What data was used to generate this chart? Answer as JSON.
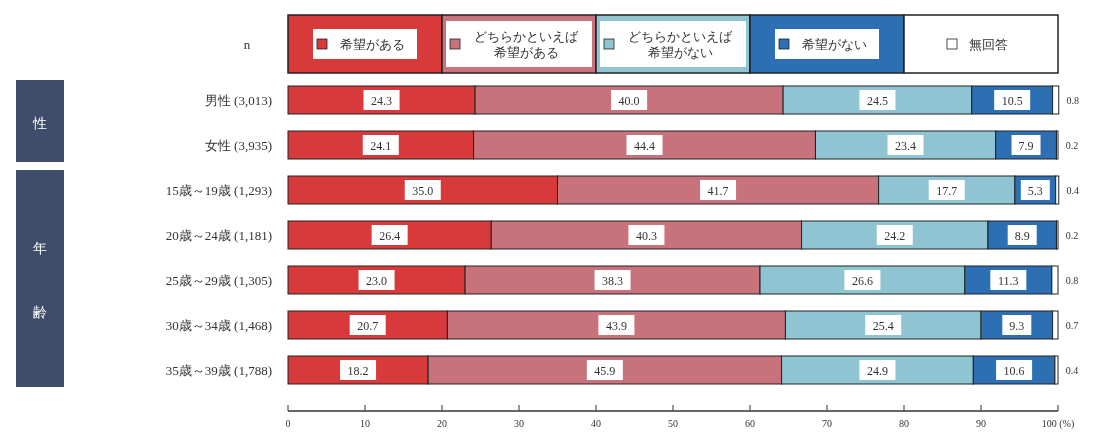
{
  "chart_data": {
    "type": "bar",
    "orientation": "horizontal",
    "stacked": true,
    "categories": [
      "男性 (3,013)",
      "女性 (3,935)",
      "15歳～19歳 (1,293)",
      "20歳～24歳 (1,181)",
      "25歳～29歳 (1,305)",
      "30歳～34歳 (1,468)",
      "35歳～39歳 (1,788)"
    ],
    "series": [
      {
        "name": "希望がある",
        "color": "#d83a3c",
        "values": [
          24.3,
          24.1,
          35.0,
          26.4,
          23.0,
          20.7,
          18.2
        ],
        "value_labels": [
          "24.3",
          "24.1",
          "35.0",
          "26.4",
          "23.0",
          "20.7",
          "18.2"
        ]
      },
      {
        "name": "どちらかといえば希望がある",
        "color": "#c8737b",
        "values": [
          40.0,
          44.4,
          41.7,
          40.3,
          38.3,
          43.9,
          45.9
        ],
        "value_labels": [
          "40.0",
          "44.4",
          "41.7",
          "40.3",
          "38.3",
          "43.9",
          "45.9"
        ]
      },
      {
        "name": "どちらかといえば希望がない",
        "color": "#8fc4d2",
        "values": [
          24.5,
          23.4,
          17.7,
          24.2,
          26.6,
          25.4,
          24.9
        ],
        "value_labels": [
          "24.5",
          "23.4",
          "17.7",
          "24.2",
          "26.6",
          "25.4",
          "24.9"
        ]
      },
      {
        "name": "希望がない",
        "color": "#2c6fb2",
        "values": [
          10.5,
          7.9,
          5.3,
          8.9,
          11.3,
          9.3,
          10.6
        ],
        "value_labels": [
          "10.5",
          "7.9",
          "5.3",
          "8.9",
          "11.3",
          "9.3",
          "10.6"
        ]
      },
      {
        "name": "無回答",
        "color": "#ffffff",
        "values": [
          0.8,
          0.2,
          0.4,
          0.2,
          0.8,
          0.7,
          0.4
        ],
        "value_labels": [
          "0.8",
          "0.2",
          "0.4",
          "0.2",
          "0.8",
          "0.7",
          "0.4"
        ]
      }
    ],
    "xlim": [
      0,
      100
    ],
    "xticks": [
      0,
      10,
      20,
      30,
      40,
      50,
      60,
      70,
      80,
      90,
      {
        "value": 100,
        "label": "100 (%)"
      }
    ],
    "legend": "top",
    "grid": false,
    "annotations": [
      "n",
      "性",
      "年",
      "齢"
    ]
  }
}
